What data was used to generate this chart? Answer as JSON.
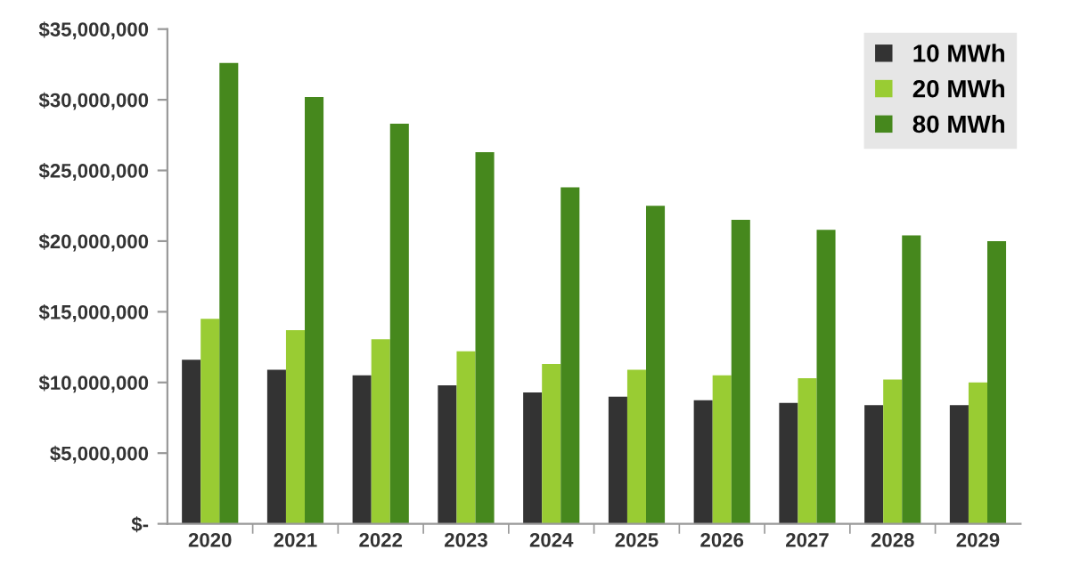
{
  "chart_data": {
    "type": "bar",
    "categories": [
      "2020",
      "2021",
      "2022",
      "2023",
      "2024",
      "2025",
      "2026",
      "2027",
      "2028",
      "2029"
    ],
    "series": [
      {
        "name": "10 MWh",
        "color": "#333333",
        "values": [
          11600000,
          10900000,
          10500000,
          9800000,
          9300000,
          9000000,
          8750000,
          8550000,
          8400000,
          8400000
        ]
      },
      {
        "name": "20 MWh",
        "color": "#99cc33",
        "values": [
          14500000,
          13700000,
          13050000,
          12200000,
          11300000,
          10900000,
          10500000,
          10300000,
          10200000,
          10000000
        ]
      },
      {
        "name": "80 MWh",
        "color": "#46881d",
        "values": [
          32600000,
          30200000,
          28300000,
          26300000,
          23800000,
          22500000,
          21500000,
          20800000,
          20400000,
          20000000
        ]
      }
    ],
    "ylim": [
      0,
      35000000
    ],
    "yticks": [
      {
        "value": 0,
        "label": "$-"
      },
      {
        "value": 5000000,
        "label": "$5,000,000"
      },
      {
        "value": 10000000,
        "label": "$10,000,000"
      },
      {
        "value": 15000000,
        "label": "$15,000,000"
      },
      {
        "value": 20000000,
        "label": "$20,000,000"
      },
      {
        "value": 25000000,
        "label": "$25,000,000"
      },
      {
        "value": 30000000,
        "label": "$30,000,000"
      },
      {
        "value": 35000000,
        "label": "$35,000,000"
      }
    ],
    "grid": false,
    "legend": "top right"
  }
}
